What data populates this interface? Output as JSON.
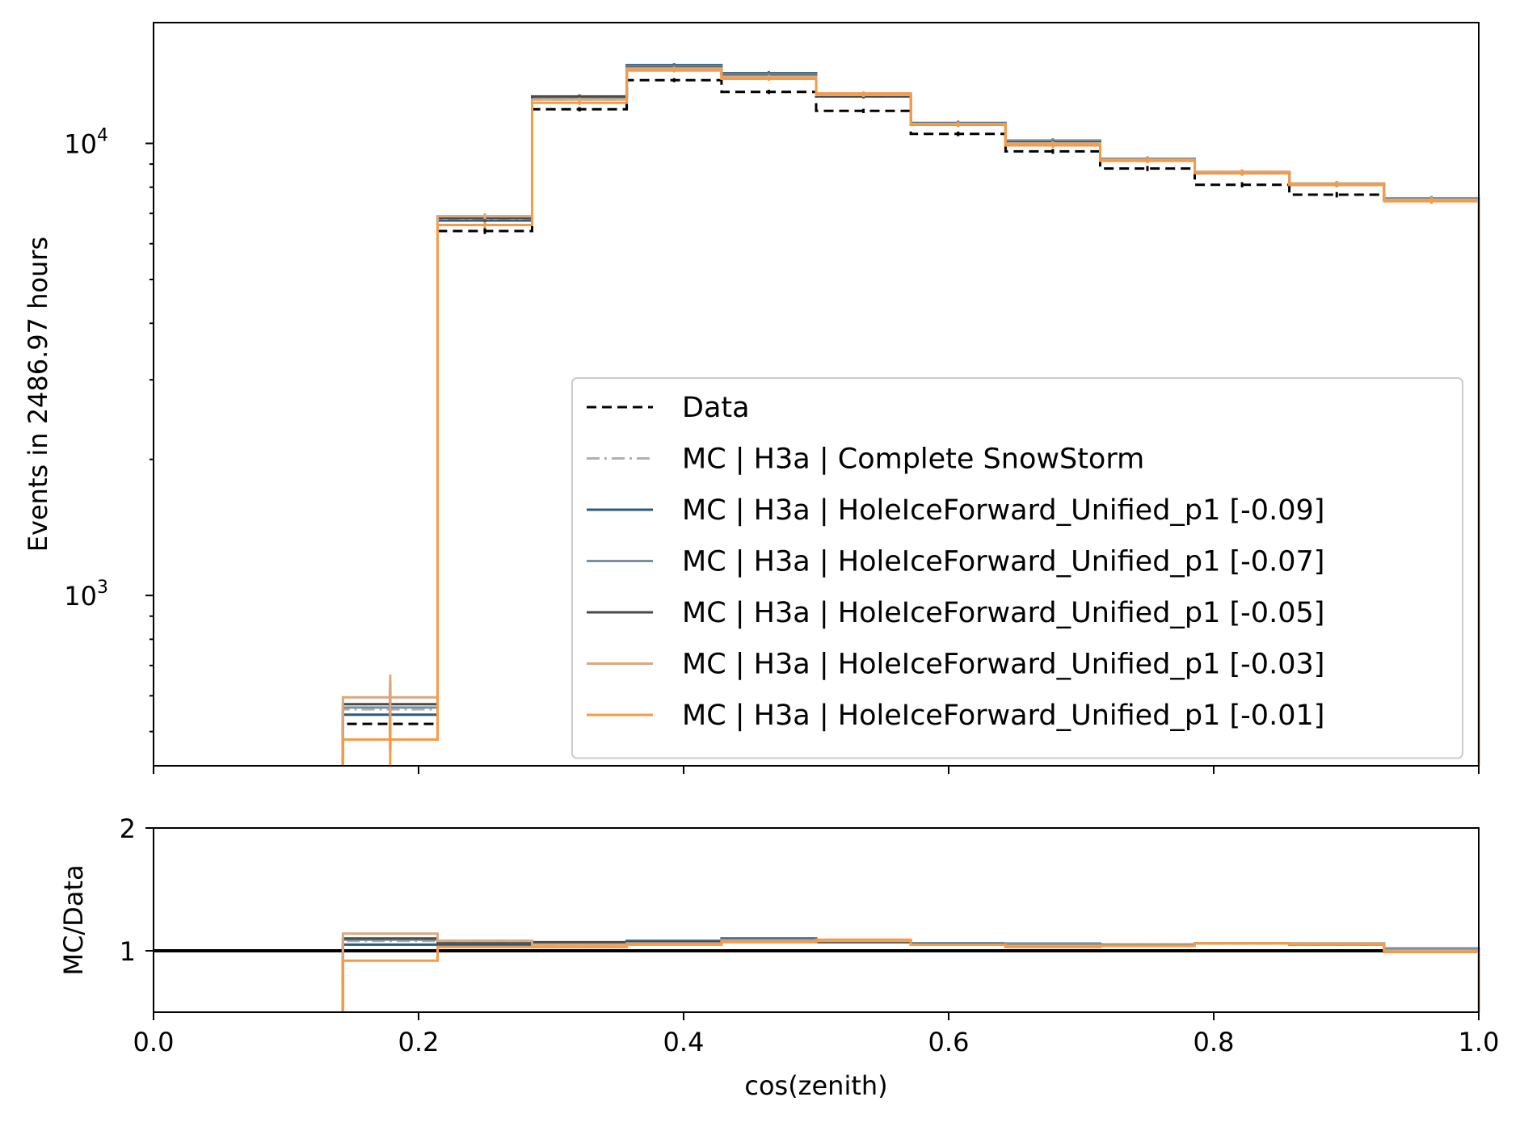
{
  "chart_data": [
    {
      "type": "line",
      "panel": "main",
      "drawstyle": "steps",
      "ylabel": "Events in 2486.97 hours",
      "yscale": "log",
      "ylim": [
        420,
        18500
      ],
      "xlim": [
        0.0,
        1.0
      ],
      "yticks": [
        {
          "base": "10",
          "exp": "3",
          "value": 1000
        },
        {
          "base": "10",
          "exp": "4",
          "value": 10000
        }
      ],
      "legend_position": "lower-right",
      "bin_edges": [
        0.0,
        0.0714,
        0.1429,
        0.2143,
        0.2857,
        0.3571,
        0.4286,
        0.5,
        0.5714,
        0.6429,
        0.7143,
        0.7857,
        0.8571,
        0.9286,
        1.0
      ],
      "series": [
        {
          "name": "Data",
          "color": "#000000",
          "style": "dashed",
          "values": [
            null,
            null,
            520,
            6400,
            11900,
            13800,
            13000,
            11800,
            10500,
            9600,
            8800,
            8100,
            7700,
            7500
          ]
        },
        {
          "name": "MC | H3a | Complete SnowStorm",
          "color": "#b0b0b0",
          "style": "dashdot",
          "values": [
            null,
            null,
            560,
            6800,
            12500,
            14600,
            14000,
            12700,
            11000,
            10000,
            9200,
            8600,
            8100,
            7500
          ]
        },
        {
          "name": "MC | H3a | HoleIceForward_Unified_p1 [-0.09]",
          "color": "#2c5b7f",
          "style": "solid",
          "values": [
            null,
            null,
            545,
            6750,
            12600,
            14900,
            14300,
            12800,
            11100,
            10100,
            9200,
            8600,
            8150,
            7550
          ]
        },
        {
          "name": "MC | H3a | HoleIceForward_Unified_p1 [-0.07]",
          "color": "#7b909e",
          "style": "solid",
          "values": [
            null,
            null,
            565,
            6900,
            12650,
            14800,
            14200,
            12750,
            11050,
            10150,
            9250,
            8650,
            8150,
            7550
          ]
        },
        {
          "name": "MC | H3a | HoleIceForward_Unified_p1 [-0.05]",
          "color": "#4a4a4a",
          "style": "solid",
          "values": [
            null,
            null,
            575,
            6850,
            12700,
            14700,
            14100,
            12700,
            11000,
            10050,
            9200,
            8600,
            8100,
            7500
          ]
        },
        {
          "name": "MC | H3a | HoleIceForward_Unified_p1 [-0.03]",
          "color": "#d9a87c",
          "style": "solid",
          "values": [
            null,
            null,
            595,
            6900,
            12500,
            14650,
            14050,
            12800,
            11050,
            10000,
            9200,
            8650,
            8150,
            7500
          ]
        },
        {
          "name": "MC | H3a | HoleIceForward_Unified_p1 [-0.01]",
          "color": "#f89a44",
          "style": "solid",
          "values": [
            null,
            null,
            480,
            6600,
            12300,
            14500,
            13900,
            12900,
            11000,
            9900,
            9150,
            8600,
            8100,
            7450
          ]
        }
      ]
    },
    {
      "type": "line",
      "panel": "ratio",
      "drawstyle": "steps",
      "xlabel": "cos(zenith)",
      "ylabel": "MC/Data",
      "ylim": [
        0.5,
        2.0
      ],
      "yticks": [
        "1",
        "2"
      ],
      "xlim": [
        0.0,
        1.0
      ],
      "xticks": [
        "0.0",
        "0.2",
        "0.4",
        "0.6",
        "0.8",
        "1.0"
      ],
      "bin_edges": [
        0.0,
        0.0714,
        0.1429,
        0.2143,
        0.2857,
        0.3571,
        0.4286,
        0.5,
        0.5714,
        0.6429,
        0.7143,
        0.7857,
        0.8571,
        0.9286,
        1.0
      ],
      "series": [
        {
          "name": "Data",
          "color": "#000000",
          "style": "solid",
          "values": [
            1,
            1,
            1,
            1,
            1,
            1,
            1,
            1,
            1,
            1,
            1,
            1,
            1,
            1
          ]
        },
        {
          "name": "MC | H3a | Complete SnowStorm",
          "color": "#b0b0b0",
          "style": "dashdot",
          "values": [
            null,
            null,
            1.08,
            1.06,
            1.05,
            1.06,
            1.08,
            1.08,
            1.05,
            1.04,
            1.05,
            1.06,
            1.05,
            1.0
          ]
        },
        {
          "name": "MC | H3a | HoleIceForward_Unified_p1 [-0.09]",
          "color": "#2c5b7f",
          "style": "solid",
          "values": [
            null,
            null,
            1.05,
            1.05,
            1.06,
            1.08,
            1.1,
            1.08,
            1.06,
            1.05,
            1.05,
            1.06,
            1.06,
            1.02
          ]
        },
        {
          "name": "MC | H3a | HoleIceForward_Unified_p1 [-0.07]",
          "color": "#7b909e",
          "style": "solid",
          "values": [
            null,
            null,
            1.09,
            1.08,
            1.06,
            1.07,
            1.09,
            1.08,
            1.05,
            1.06,
            1.05,
            1.06,
            1.06,
            1.02
          ]
        },
        {
          "name": "MC | H3a | HoleIceForward_Unified_p1 [-0.05]",
          "color": "#4a4a4a",
          "style": "solid",
          "values": [
            null,
            null,
            1.1,
            1.07,
            1.07,
            1.07,
            1.08,
            1.07,
            1.05,
            1.04,
            1.04,
            1.06,
            1.05,
            1.0
          ]
        },
        {
          "name": "MC | H3a | HoleIceForward_Unified_p1 [-0.03]",
          "color": "#d9a87c",
          "style": "solid",
          "values": [
            null,
            null,
            1.14,
            1.08,
            1.05,
            1.06,
            1.08,
            1.08,
            1.05,
            1.04,
            1.04,
            1.06,
            1.06,
            1.0
          ]
        },
        {
          "name": "MC | H3a | HoleIceForward_Unified_p1 [-0.01]",
          "color": "#f89a44",
          "style": "solid",
          "values": [
            null,
            null,
            0.92,
            1.03,
            1.03,
            1.05,
            1.07,
            1.09,
            1.05,
            1.03,
            1.04,
            1.06,
            1.05,
            0.99
          ]
        }
      ]
    }
  ]
}
